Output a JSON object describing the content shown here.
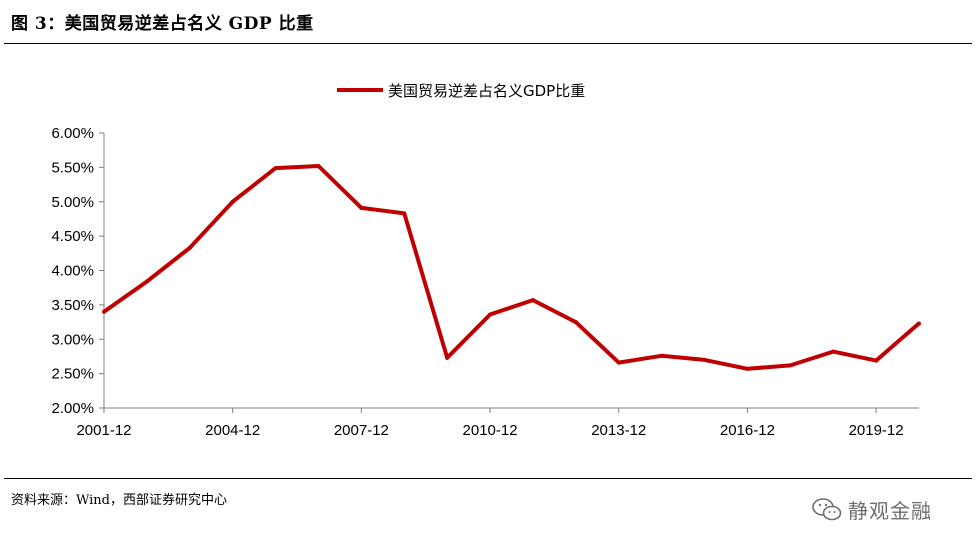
{
  "header": {
    "title": "图 3：美国贸易逆差占名义 GDP 比重"
  },
  "footer": {
    "source": "资料来源：Wind，西部证券研究中心",
    "watermark": "静观金融"
  },
  "colors": {
    "series": "#c00000",
    "axis": "#808080",
    "text": "#000000"
  },
  "chart_data": {
    "type": "line",
    "title": "",
    "xlabel": "",
    "ylabel": "",
    "x": [
      "2001-12",
      "2002-12",
      "2003-12",
      "2004-12",
      "2005-12",
      "2006-12",
      "2007-12",
      "2008-12",
      "2009-12",
      "2010-12",
      "2011-12",
      "2012-12",
      "2013-12",
      "2014-12",
      "2015-12",
      "2016-12",
      "2017-12",
      "2018-12",
      "2019-12",
      "2020-12"
    ],
    "x_tick_labels": [
      "2001-12",
      "2004-12",
      "2007-12",
      "2010-12",
      "2013-12",
      "2016-12",
      "2019-12"
    ],
    "y_tick_labels": [
      "6.00%",
      "5.50%",
      "5.00%",
      "4.50%",
      "4.00%",
      "3.50%",
      "3.00%",
      "2.50%",
      "2.00%"
    ],
    "ylim": [
      0.02,
      0.06
    ],
    "grid": false,
    "legend_position": "top",
    "series": [
      {
        "name": "美国贸易逆差占名义GDP比重",
        "values": [
          0.034,
          0.0384,
          0.0433,
          0.05,
          0.0549,
          0.0552,
          0.0491,
          0.0483,
          0.0273,
          0.0336,
          0.0357,
          0.0325,
          0.0266,
          0.0276,
          0.027,
          0.0257,
          0.0262,
          0.0282,
          0.0269,
          0.0323
        ]
      }
    ]
  }
}
